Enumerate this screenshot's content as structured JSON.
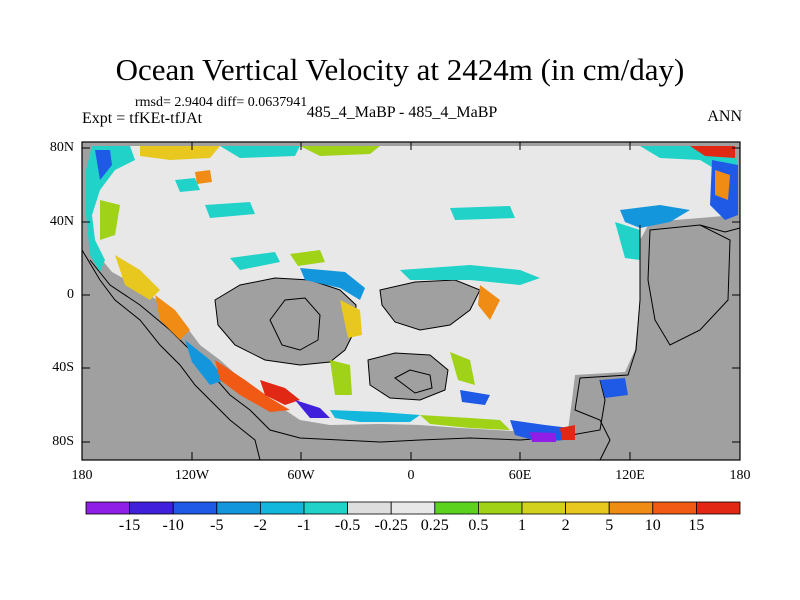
{
  "header": {
    "title": "Ocean Vertical Velocity at 2424m (in cm/day)",
    "stats": "rmsd= 2.9404 diff= 0.0637941",
    "experiment": "Expt = tfKEt-tfJAt",
    "run": "485_4_MaBP - 485_4_MaBP",
    "season": "ANN"
  },
  "axes": {
    "lat_ticks": [
      "80N",
      "40N",
      "0",
      "40S",
      "80S"
    ],
    "lon_ticks": [
      "180",
      "120W",
      "60W",
      "0",
      "60E",
      "120E",
      "180"
    ]
  },
  "colorbar": {
    "labels": [
      "-15",
      "-10",
      "-5",
      "-2",
      "-1",
      "-0.5",
      "-0.25",
      "0.25",
      "0.5",
      "1",
      "2",
      "5",
      "10",
      "15"
    ],
    "colors": [
      "#8f1fe6",
      "#4120dc",
      "#1f5ae6",
      "#1496dc",
      "#13b7dc",
      "#20d2c8",
      "#dedede",
      "#e8e8e8",
      "#5ad21e",
      "#a0d218",
      "#d2d21e",
      "#e8c81e",
      "#f08c14",
      "#f05a14",
      "#e02814"
    ]
  },
  "legend": {
    "land": "#a0a0a0",
    "ocean_near_zero": "#e8e8e8"
  }
}
